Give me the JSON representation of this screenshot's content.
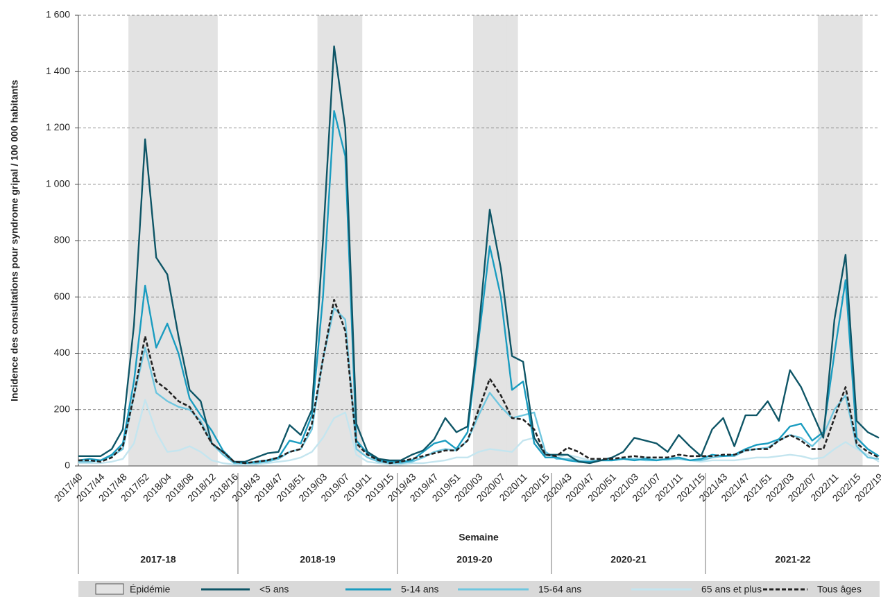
{
  "chart_data": {
    "type": "line",
    "ylabel": "Incidence des consultations pour syndrome gripal / 100 000 habitants",
    "xlabel": "Semaine",
    "seasons": [
      "2017-18",
      "2018-19",
      "2019-20",
      "2020-21",
      "2021-22"
    ],
    "categories": [
      "2017/40",
      null,
      "2017/44",
      null,
      "2017/48",
      null,
      "2017/52",
      null,
      "2018/04",
      null,
      "2018/08",
      null,
      "2018/12",
      null,
      "2018/16",
      null,
      "2018/43",
      null,
      "2018/47",
      null,
      "2018/51",
      null,
      "2019/03",
      null,
      "2019/07",
      null,
      "2019/11",
      null,
      "2019/15",
      null,
      "2019/43",
      null,
      "2019/47",
      null,
      "2019/51",
      null,
      "2020/03",
      null,
      "2020/07",
      null,
      "2020/11",
      null,
      "2020/15",
      null,
      "2020/43",
      null,
      "2020/47",
      null,
      "2020/51",
      null,
      "2021/03",
      null,
      "2021/07",
      null,
      "2021/11",
      null,
      "2021/15",
      null,
      "2021/43",
      null,
      "2021/47",
      null,
      "2021/51",
      null,
      "2022/03",
      null,
      "2022/07",
      null,
      "2022/11",
      null,
      "2022/15",
      null,
      "2022/19"
    ],
    "series": [
      {
        "name": "Épidémie",
        "kind": "band",
        "color": "#e3e3e3",
        "values": [
          null,
          null,
          null,
          null,
          null,
          1600,
          1600,
          1600,
          1600,
          1600,
          1600,
          1600,
          1600,
          null,
          null,
          null,
          null,
          null,
          null,
          null,
          null,
          null,
          1600,
          1600,
          1600,
          1600,
          null,
          null,
          null,
          null,
          null,
          null,
          null,
          null,
          null,
          null,
          1600,
          1600,
          1600,
          1600,
          null,
          null,
          null,
          null,
          null,
          null,
          null,
          null,
          null,
          null,
          null,
          null,
          null,
          null,
          null,
          null,
          null,
          null,
          null,
          null,
          null,
          null,
          null,
          null,
          null,
          null,
          null,
          1600,
          1600,
          1600,
          1600,
          null,
          null
        ]
      },
      {
        "name": "<5 ans",
        "color": "#0e5566",
        "values": [
          35,
          35,
          35,
          60,
          130,
          500,
          1160,
          740,
          680,
          460,
          270,
          230,
          80,
          50,
          15,
          15,
          30,
          45,
          50,
          145,
          110,
          200,
          800,
          1490,
          1200,
          150,
          50,
          25,
          20,
          20,
          40,
          55,
          95,
          170,
          120,
          140,
          480,
          910,
          700,
          390,
          370,
          100,
          40,
          40,
          40,
          15,
          10,
          20,
          30,
          50,
          100,
          90,
          80,
          50,
          110,
          70,
          35,
          130,
          170,
          70,
          180,
          180,
          230,
          160,
          340,
          280,
          190,
          100,
          520,
          750,
          160,
          120,
          100
        ]
      },
      {
        "name": "5-14 ans",
        "color": "#1a9cc0",
        "values": [
          20,
          25,
          20,
          40,
          80,
          300,
          640,
          420,
          505,
          400,
          240,
          180,
          125,
          55,
          15,
          10,
          15,
          20,
          30,
          90,
          80,
          180,
          600,
          1260,
          1100,
          90,
          45,
          20,
          15,
          15,
          20,
          50,
          80,
          90,
          60,
          120,
          450,
          780,
          600,
          270,
          300,
          80,
          30,
          30,
          20,
          15,
          15,
          20,
          20,
          25,
          20,
          25,
          20,
          25,
          30,
          20,
          25,
          40,
          35,
          40,
          60,
          75,
          80,
          95,
          140,
          150,
          90,
          120,
          400,
          660,
          100,
          60,
          35
        ]
      },
      {
        "name": "15-64 ans",
        "color": "#6fc6df",
        "values": [
          15,
          15,
          20,
          35,
          60,
          250,
          420,
          260,
          230,
          210,
          200,
          160,
          80,
          40,
          10,
          10,
          10,
          15,
          25,
          50,
          60,
          130,
          380,
          560,
          520,
          60,
          30,
          15,
          10,
          10,
          15,
          30,
          50,
          60,
          55,
          90,
          180,
          260,
          210,
          170,
          180,
          190,
          50,
          25,
          25,
          20,
          15,
          20,
          20,
          25,
          25,
          20,
          20,
          25,
          25,
          20,
          20,
          30,
          35,
          35,
          55,
          60,
          65,
          90,
          110,
          100,
          70,
          110,
          200,
          250,
          70,
          30,
          25
        ]
      },
      {
        "name": "65 ans et plus",
        "color": "#c4e5ef",
        "values": [
          10,
          10,
          10,
          15,
          25,
          80,
          235,
          120,
          50,
          55,
          70,
          50,
          20,
          10,
          5,
          5,
          5,
          10,
          15,
          20,
          30,
          50,
          100,
          170,
          190,
          40,
          15,
          10,
          5,
          5,
          10,
          10,
          15,
          20,
          30,
          30,
          50,
          60,
          55,
          50,
          90,
          100,
          30,
          30,
          40,
          30,
          20,
          20,
          20,
          25,
          25,
          30,
          25,
          20,
          25,
          20,
          15,
          20,
          20,
          20,
          25,
          30,
          30,
          35,
          40,
          35,
          25,
          30,
          60,
          85,
          60,
          40,
          15
        ]
      },
      {
        "name": "Tous âges",
        "color": "#222222",
        "dashed": true,
        "values": [
          20,
          20,
          15,
          30,
          70,
          250,
          460,
          300,
          270,
          230,
          210,
          150,
          80,
          50,
          15,
          10,
          15,
          20,
          30,
          50,
          60,
          150,
          380,
          590,
          480,
          80,
          40,
          20,
          10,
          15,
          25,
          35,
          45,
          55,
          55,
          90,
          200,
          310,
          250,
          170,
          165,
          130,
          40,
          35,
          65,
          50,
          25,
          25,
          25,
          30,
          35,
          30,
          30,
          30,
          40,
          35,
          35,
          35,
          40,
          40,
          55,
          60,
          60,
          90,
          110,
          90,
          60,
          60,
          170,
          280,
          80,
          50,
          30
        ]
      }
    ],
    "ylim": [
      0,
      1600
    ],
    "yticks": [
      0,
      200,
      400,
      600,
      800,
      {
        "value": 1000,
        "label": "1 000"
      },
      {
        "value": 1200,
        "label": "1 200"
      },
      {
        "value": 1400,
        "label": "1 400"
      },
      {
        "value": 1600,
        "label": "1 600"
      }
    ],
    "grid": true
  }
}
